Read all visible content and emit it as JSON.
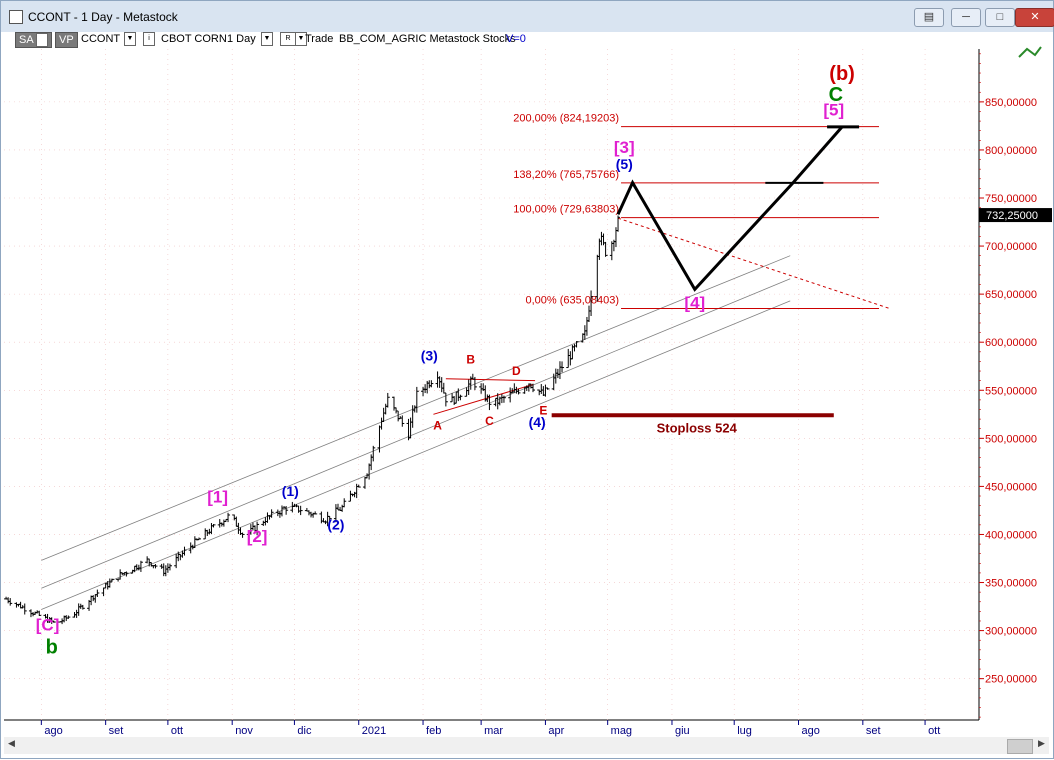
{
  "window": {
    "title": "CCONT - 1 Day - Metastock",
    "buttons": {
      "menu": "▤",
      "minimize": "─",
      "maximize": "□",
      "close": "✕"
    }
  },
  "toolbar": {
    "sa": "SA",
    "vp": "VP",
    "symbol": "CCONT",
    "name": "CBOT CORN",
    "period": "1 Day",
    "r": "R",
    "trade": "Trade",
    "description": "BB_COM_AGRIC Metastock Stocks",
    "volume": "V=0"
  },
  "icons": [
    "wave-tool-icon",
    "scroll-left-icon",
    "scroll-right-icon"
  ],
  "colors": {
    "price_axis": "#cc0000",
    "time_axis": "#000080",
    "fib": "#cc0000",
    "magenta": "#e020d0",
    "green": "#008000",
    "blue_label": "#0000cc",
    "stoploss": "#8b0000",
    "bars": "#000000",
    "grid": "#f0c0c0",
    "window_bar": "#d9e4f1"
  },
  "chart_data": {
    "type": "ohlc",
    "y_axis": {
      "ticks": [
        250,
        300,
        350,
        400,
        450,
        500,
        550,
        600,
        650,
        700,
        750,
        800,
        850
      ],
      "tick_labels": [
        "250,00000",
        "300,00000",
        "350,00000",
        "400,00000",
        "450,00000",
        "500,00000",
        "550,00000",
        "600,00000",
        "650,00000",
        "700,00000",
        "750,00000",
        "800,00000",
        "850,00000"
      ],
      "ylim": [
        207,
        905
      ]
    },
    "x_axis": {
      "labels": [
        "ago",
        "set",
        "ott",
        "nov",
        "dic",
        "2021",
        "feb",
        "mar",
        "apr",
        "mag",
        "giu",
        "lug",
        "ago",
        "set",
        "ott"
      ],
      "label_dates": [
        "2020-08-01",
        "2020-09-01",
        "2020-10-01",
        "2020-11-01",
        "2020-12-01",
        "2021-01-01",
        "2021-02-01",
        "2021-03-01",
        "2021-04-01",
        "2021-05-01",
        "2021-06-01",
        "2021-07-01",
        "2021-08-01",
        "2021-09-01",
        "2021-10-01"
      ],
      "xlim": [
        "2020-07-14",
        "2021-10-27"
      ]
    },
    "last_price": {
      "label": "732,25000",
      "value": 732.25
    },
    "price_path": [
      [
        "2020-07-15",
        333
      ],
      [
        "2020-07-25",
        322
      ],
      [
        "2020-08-08",
        307
      ],
      [
        "2020-08-17",
        318
      ],
      [
        "2020-08-26",
        336
      ],
      [
        "2020-09-08",
        358
      ],
      [
        "2020-09-21",
        373
      ],
      [
        "2020-09-29",
        362
      ],
      [
        "2020-10-12",
        388
      ],
      [
        "2020-10-22",
        406
      ],
      [
        "2020-10-31",
        420
      ],
      [
        "2020-11-07",
        398
      ],
      [
        "2020-11-17",
        416
      ],
      [
        "2020-11-27",
        428
      ],
      [
        "2020-12-04",
        426
      ],
      [
        "2020-12-16",
        416
      ],
      [
        "2020-12-24",
        428
      ],
      [
        "2021-01-05",
        465
      ],
      [
        "2021-01-12",
        520
      ],
      [
        "2021-01-15",
        540
      ],
      [
        "2021-01-25",
        505
      ],
      [
        "2021-01-29",
        545
      ],
      [
        "2021-02-08",
        568
      ],
      [
        "2021-02-13",
        535
      ],
      [
        "2021-02-25",
        560
      ],
      [
        "2021-03-06",
        535
      ],
      [
        "2021-03-15",
        545
      ],
      [
        "2021-03-24",
        558
      ],
      [
        "2021-03-31",
        545
      ],
      [
        "2021-04-10",
        578
      ],
      [
        "2021-04-20",
        608
      ],
      [
        "2021-04-27",
        710
      ],
      [
        "2021-05-01",
        690
      ],
      [
        "2021-05-06",
        725
      ]
    ],
    "forecast_path": [
      [
        "2021-05-06",
        733
      ],
      [
        "2021-05-13",
        766
      ],
      [
        "2021-06-12",
        655
      ],
      [
        "2021-07-29",
        765
      ],
      [
        "2021-08-22",
        824
      ]
    ],
    "fib_levels": [
      {
        "label": "200,00% (824,19203)",
        "value": 824.19203
      },
      {
        "label": "138,20% (765,75766)",
        "value": 765.75766
      },
      {
        "label": "100,00% (729,63803)",
        "value": 729.63803
      },
      {
        "label": "0,00% (635,08403)",
        "value": 635.08403
      }
    ],
    "channels": [
      {
        "start": [
          "2020-08-01",
          373
        ],
        "end": [
          "2021-07-28",
          690
        ]
      },
      {
        "start": [
          "2020-08-01",
          344
        ],
        "end": [
          "2021-07-28",
          666
        ]
      },
      {
        "start": [
          "2020-08-01",
          322
        ],
        "end": [
          "2021-07-28",
          643
        ]
      }
    ],
    "dotted_line": {
      "start": [
        "2021-05-06",
        729
      ],
      "end": [
        "2021-09-14",
        635
      ]
    },
    "triangle_lines": [
      {
        "start": [
          "2021-02-06",
          525
        ],
        "end": [
          "2021-03-26",
          556
        ]
      },
      {
        "start": [
          "2021-02-12",
          562
        ],
        "end": [
          "2021-03-27",
          560
        ]
      }
    ],
    "stoploss": {
      "label": "Stoploss 524",
      "value": 524,
      "start": "2021-04-04",
      "end": "2021-08-18"
    },
    "wave_labels": [
      {
        "text": "[C]",
        "date": "2020-08-04",
        "price": 300,
        "color": "magenta"
      },
      {
        "text": "b",
        "date": "2020-08-06",
        "price": 276,
        "color": "green"
      },
      {
        "text": "[1]",
        "date": "2020-10-25",
        "price": 433,
        "color": "magenta"
      },
      {
        "text": "[2]",
        "date": "2020-11-13",
        "price": 392,
        "color": "magenta"
      },
      {
        "text": "(1)",
        "date": "2020-11-29",
        "price": 440,
        "color": "blue"
      },
      {
        "text": "(2)",
        "date": "2020-12-21",
        "price": 405,
        "color": "blue"
      },
      {
        "text": "(3)",
        "date": "2021-02-04",
        "price": 581,
        "color": "blue"
      },
      {
        "text": "A",
        "date": "2021-02-08",
        "price": 509,
        "color": "red"
      },
      {
        "text": "B",
        "date": "2021-02-24",
        "price": 578,
        "color": "red"
      },
      {
        "text": "C",
        "date": "2021-03-05",
        "price": 514,
        "color": "red"
      },
      {
        "text": "D",
        "date": "2021-03-18",
        "price": 566,
        "color": "red"
      },
      {
        "text": "E",
        "date": "2021-03-31",
        "price": 525,
        "color": "red"
      },
      {
        "text": "(4)",
        "date": "2021-03-28",
        "price": 512,
        "color": "blue"
      },
      {
        "text": "(5)",
        "date": "2021-05-09",
        "price": 780,
        "color": "blue"
      },
      {
        "text": "[3]",
        "date": "2021-05-09",
        "price": 797,
        "color": "magenta"
      },
      {
        "text": "[4]",
        "date": "2021-06-12",
        "price": 635,
        "color": "magenta"
      },
      {
        "text": "[5]",
        "date": "2021-08-18",
        "price": 836,
        "color": "magenta"
      },
      {
        "text": "C",
        "date": "2021-08-19",
        "price": 851,
        "color": "green"
      },
      {
        "text": "(b)",
        "date": "2021-08-22",
        "price": 873,
        "color": "red"
      }
    ],
    "grid": true
  }
}
